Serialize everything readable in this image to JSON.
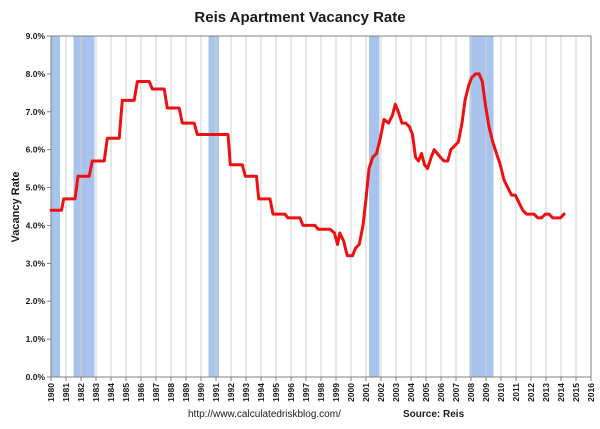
{
  "chart_data": {
    "type": "line",
    "title": "Reis Apartment Vacancy Rate",
    "ylabel": "Vacancy Rate",
    "xlabel": "",
    "ylim": [
      0,
      9
    ],
    "xlim": [
      1980,
      2016
    ],
    "y_ticks": [
      "0.0%",
      "1.0%",
      "2.0%",
      "3.0%",
      "4.0%",
      "5.0%",
      "6.0%",
      "7.0%",
      "8.0%",
      "9.0%"
    ],
    "x_ticks": [
      "1980",
      "1981",
      "1982",
      "1983",
      "1984",
      "1985",
      "1986",
      "1987",
      "1988",
      "1989",
      "1990",
      "1991",
      "1992",
      "1993",
      "1994",
      "1995",
      "1996",
      "1997",
      "1998",
      "1999",
      "2000",
      "2001",
      "2002",
      "2003",
      "2004",
      "2005",
      "2006",
      "2007",
      "2008",
      "2009",
      "2010",
      "2011",
      "2012",
      "2013",
      "2014",
      "2015",
      "2016"
    ],
    "grid": "vertical",
    "recessions": [
      [
        1980.0,
        1980.6
      ],
      [
        1981.5,
        1982.9
      ],
      [
        1990.5,
        1991.2
      ],
      [
        2001.2,
        2001.9
      ],
      [
        2007.9,
        2009.5
      ]
    ],
    "colors": {
      "line": "#ee1111",
      "recession": "#a9c4ec",
      "grid": "#d0d0d0",
      "axis": "#808080"
    },
    "series": [
      {
        "values": [
          [
            1980.0,
            4.4
          ],
          [
            1980.7,
            4.4
          ],
          [
            1980.85,
            4.7
          ],
          [
            1981.6,
            4.7
          ],
          [
            1981.8,
            5.3
          ],
          [
            1982.55,
            5.3
          ],
          [
            1982.75,
            5.7
          ],
          [
            1983.55,
            5.7
          ],
          [
            1983.75,
            6.3
          ],
          [
            1984.55,
            6.3
          ],
          [
            1984.75,
            7.3
          ],
          [
            1985.55,
            7.3
          ],
          [
            1985.75,
            7.8
          ],
          [
            1986.55,
            7.8
          ],
          [
            1986.75,
            7.6
          ],
          [
            1987.55,
            7.6
          ],
          [
            1987.75,
            7.1
          ],
          [
            1988.55,
            7.1
          ],
          [
            1988.75,
            6.7
          ],
          [
            1989.55,
            6.7
          ],
          [
            1989.75,
            6.4
          ],
          [
            1991.8,
            6.4
          ],
          [
            1991.95,
            5.6
          ],
          [
            1992.75,
            5.6
          ],
          [
            1992.95,
            5.3
          ],
          [
            1993.7,
            5.3
          ],
          [
            1993.85,
            4.7
          ],
          [
            1994.6,
            4.7
          ],
          [
            1994.8,
            4.3
          ],
          [
            1995.6,
            4.3
          ],
          [
            1995.8,
            4.2
          ],
          [
            1996.6,
            4.2
          ],
          [
            1996.8,
            4.0
          ],
          [
            1997.6,
            4.0
          ],
          [
            1997.8,
            3.9
          ],
          [
            1998.6,
            3.9
          ],
          [
            1998.9,
            3.8
          ],
          [
            1999.1,
            3.5
          ],
          [
            1999.25,
            3.8
          ],
          [
            1999.5,
            3.6
          ],
          [
            1999.75,
            3.2
          ],
          [
            2000.1,
            3.2
          ],
          [
            2000.3,
            3.4
          ],
          [
            2000.55,
            3.5
          ],
          [
            2000.8,
            4.0
          ],
          [
            2001.0,
            4.7
          ],
          [
            2001.2,
            5.5
          ],
          [
            2001.45,
            5.8
          ],
          [
            2001.7,
            5.9
          ],
          [
            2001.95,
            6.3
          ],
          [
            2002.2,
            6.8
          ],
          [
            2002.5,
            6.7
          ],
          [
            2002.75,
            6.9
          ],
          [
            2002.95,
            7.2
          ],
          [
            2003.15,
            7.0
          ],
          [
            2003.4,
            6.7
          ],
          [
            2003.65,
            6.7
          ],
          [
            2003.9,
            6.6
          ],
          [
            2004.1,
            6.4
          ],
          [
            2004.3,
            5.8
          ],
          [
            2004.5,
            5.7
          ],
          [
            2004.7,
            5.9
          ],
          [
            2004.9,
            5.6
          ],
          [
            2005.1,
            5.5
          ],
          [
            2005.35,
            5.8
          ],
          [
            2005.55,
            6.0
          ],
          [
            2005.75,
            5.9
          ],
          [
            2005.95,
            5.8
          ],
          [
            2006.2,
            5.7
          ],
          [
            2006.45,
            5.7
          ],
          [
            2006.65,
            6.0
          ],
          [
            2006.9,
            6.1
          ],
          [
            2007.15,
            6.2
          ],
          [
            2007.4,
            6.7
          ],
          [
            2007.6,
            7.3
          ],
          [
            2007.85,
            7.7
          ],
          [
            2008.05,
            7.9
          ],
          [
            2008.3,
            8.0
          ],
          [
            2008.55,
            8.0
          ],
          [
            2008.75,
            7.8
          ],
          [
            2008.95,
            7.2
          ],
          [
            2009.2,
            6.6
          ],
          [
            2009.45,
            6.2
          ],
          [
            2009.7,
            5.9
          ],
          [
            2009.95,
            5.6
          ],
          [
            2010.2,
            5.2
          ],
          [
            2010.45,
            5.0
          ],
          [
            2010.7,
            4.8
          ],
          [
            2010.95,
            4.8
          ],
          [
            2011.2,
            4.6
          ],
          [
            2011.45,
            4.4
          ],
          [
            2011.7,
            4.3
          ],
          [
            2011.95,
            4.3
          ],
          [
            2012.2,
            4.3
          ],
          [
            2012.45,
            4.2
          ],
          [
            2012.7,
            4.2
          ],
          [
            2012.95,
            4.3
          ],
          [
            2013.2,
            4.3
          ],
          [
            2013.45,
            4.2
          ],
          [
            2013.7,
            4.2
          ],
          [
            2013.95,
            4.2
          ],
          [
            2014.2,
            4.3
          ]
        ]
      }
    ]
  },
  "footer": {
    "url": "http://www.calculatedriskblog.com/",
    "source": "Source: Reis"
  }
}
